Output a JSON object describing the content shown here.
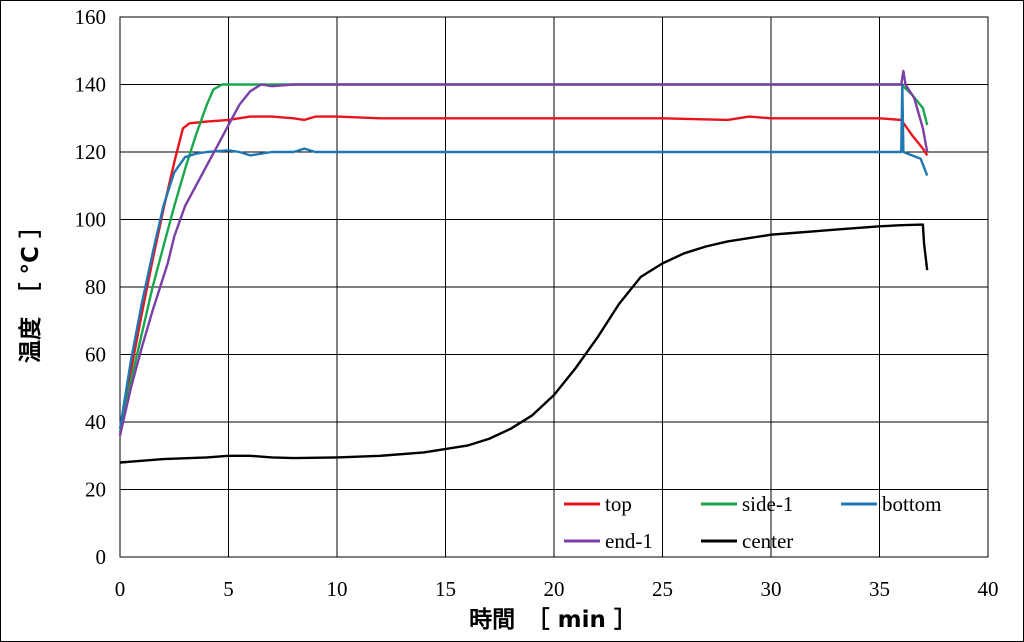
{
  "chart_data": {
    "type": "line",
    "xlabel": "時間　［ min ］",
    "ylabel": "温度　［ °C ］",
    "xlim": [
      0,
      40
    ],
    "ylim": [
      0,
      160
    ],
    "xticks": [
      0,
      5,
      10,
      15,
      20,
      25,
      30,
      35,
      40
    ],
    "yticks": [
      0,
      20,
      40,
      60,
      80,
      100,
      120,
      140,
      160
    ],
    "grid": true,
    "legend_position": "bottom-right",
    "series": [
      {
        "name": "top",
        "color": "#e8141c",
        "points": [
          [
            0,
            36
          ],
          [
            0.5,
            55
          ],
          [
            1,
            72
          ],
          [
            1.5,
            88
          ],
          [
            2,
            103
          ],
          [
            2.5,
            117
          ],
          [
            2.9,
            127
          ],
          [
            3.2,
            128.5
          ],
          [
            4,
            129
          ],
          [
            5,
            129.5
          ],
          [
            6,
            130.5
          ],
          [
            7,
            130.5
          ],
          [
            8,
            130
          ],
          [
            8.5,
            129.5
          ],
          [
            9,
            130.5
          ],
          [
            10,
            130.5
          ],
          [
            12,
            130
          ],
          [
            15,
            130
          ],
          [
            20,
            130
          ],
          [
            25,
            130
          ],
          [
            28,
            129.5
          ],
          [
            29,
            130.5
          ],
          [
            30,
            130
          ],
          [
            35,
            130
          ],
          [
            36,
            129.5
          ],
          [
            36.5,
            125
          ],
          [
            37,
            121
          ],
          [
            37.2,
            119
          ]
        ]
      },
      {
        "name": "side-1",
        "color": "#1aa64a",
        "points": [
          [
            0,
            37
          ],
          [
            0.5,
            52
          ],
          [
            1,
            66
          ],
          [
            1.5,
            80
          ],
          [
            2,
            92
          ],
          [
            2.5,
            104
          ],
          [
            3,
            115
          ],
          [
            3.5,
            125
          ],
          [
            4,
            134
          ],
          [
            4.3,
            138.5
          ],
          [
            4.7,
            140
          ],
          [
            6,
            140
          ],
          [
            10,
            140
          ],
          [
            15,
            140
          ],
          [
            20,
            140
          ],
          [
            25,
            140
          ],
          [
            30,
            140
          ],
          [
            35,
            140
          ],
          [
            36,
            140
          ],
          [
            36.5,
            137
          ],
          [
            37,
            133
          ],
          [
            37.2,
            128
          ]
        ]
      },
      {
        "name": "bottom",
        "color": "#1f77b4",
        "points": [
          [
            0,
            38
          ],
          [
            0.5,
            58
          ],
          [
            1,
            75
          ],
          [
            1.5,
            90
          ],
          [
            2,
            104
          ],
          [
            2.5,
            114
          ],
          [
            3,
            118.5
          ],
          [
            3.5,
            119.5
          ],
          [
            4,
            120
          ],
          [
            5,
            120.5
          ],
          [
            5.5,
            120
          ],
          [
            6,
            119
          ],
          [
            7,
            120
          ],
          [
            8,
            120
          ],
          [
            8.5,
            121
          ],
          [
            9,
            120
          ],
          [
            10,
            120
          ],
          [
            15,
            120
          ],
          [
            20,
            120
          ],
          [
            25,
            120
          ],
          [
            30,
            120
          ],
          [
            35,
            120
          ],
          [
            36,
            120
          ],
          [
            36.05,
            140
          ],
          [
            36.1,
            120
          ],
          [
            36.5,
            119
          ],
          [
            36.9,
            118
          ],
          [
            37.2,
            113
          ]
        ]
      },
      {
        "name": "end-1",
        "color": "#7b3fa8",
        "points": [
          [
            0,
            36
          ],
          [
            0.5,
            50
          ],
          [
            1,
            62
          ],
          [
            1.5,
            73
          ],
          [
            2,
            83
          ],
          [
            2.2,
            87
          ],
          [
            2.5,
            95
          ],
          [
            3,
            104
          ],
          [
            3.5,
            110
          ],
          [
            4,
            116
          ],
          [
            4.5,
            122
          ],
          [
            5,
            128
          ],
          [
            5.5,
            134
          ],
          [
            6,
            138
          ],
          [
            6.5,
            140
          ],
          [
            7,
            139.5
          ],
          [
            8,
            140
          ],
          [
            10,
            140
          ],
          [
            15,
            140
          ],
          [
            20,
            140
          ],
          [
            25,
            140
          ],
          [
            30,
            140
          ],
          [
            35,
            140
          ],
          [
            36,
            140
          ],
          [
            36.1,
            144
          ],
          [
            36.2,
            140
          ],
          [
            36.6,
            136
          ],
          [
            37,
            127
          ],
          [
            37.2,
            120
          ]
        ]
      },
      {
        "name": "center",
        "color": "#000000",
        "points": [
          [
            0,
            28
          ],
          [
            2,
            29
          ],
          [
            4,
            29.5
          ],
          [
            5,
            30
          ],
          [
            6,
            30
          ],
          [
            7,
            29.5
          ],
          [
            8,
            29.3
          ],
          [
            10,
            29.5
          ],
          [
            12,
            30
          ],
          [
            14,
            31
          ],
          [
            16,
            33
          ],
          [
            17,
            35
          ],
          [
            18,
            38
          ],
          [
            19,
            42
          ],
          [
            20,
            48
          ],
          [
            21,
            56
          ],
          [
            22,
            65
          ],
          [
            23,
            75
          ],
          [
            24,
            83
          ],
          [
            25,
            87
          ],
          [
            26,
            90
          ],
          [
            27,
            92
          ],
          [
            28,
            93.5
          ],
          [
            29,
            94.5
          ],
          [
            30,
            95.5
          ],
          [
            31,
            96
          ],
          [
            32,
            96.5
          ],
          [
            33,
            97
          ],
          [
            34,
            97.5
          ],
          [
            35,
            98
          ],
          [
            36,
            98.3
          ],
          [
            37,
            98.5
          ],
          [
            37.05,
            93
          ],
          [
            37.2,
            85
          ]
        ]
      }
    ]
  }
}
